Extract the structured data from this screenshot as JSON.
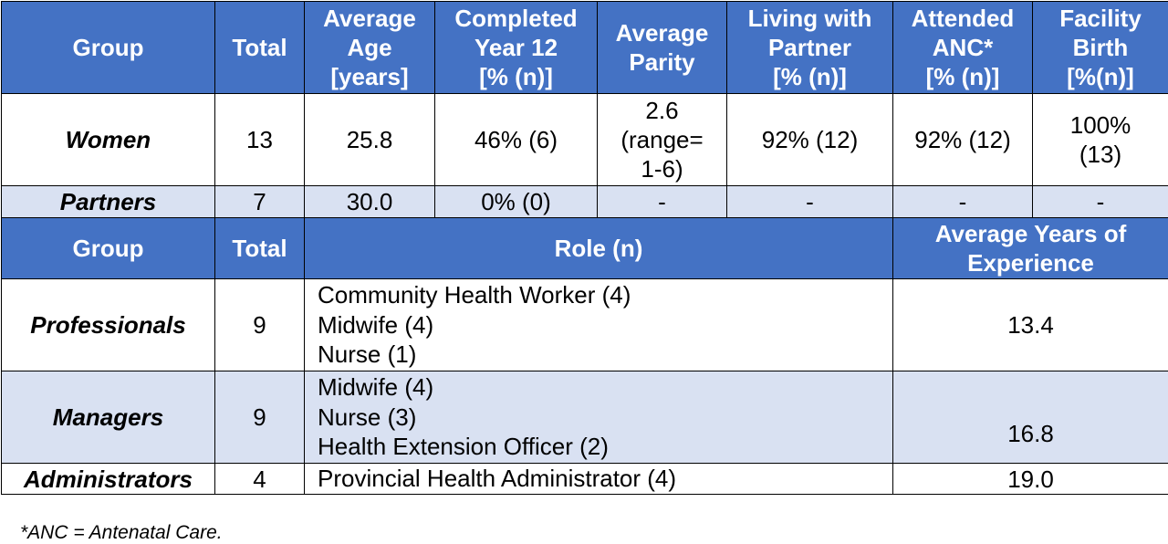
{
  "table1": {
    "headers": [
      "Group",
      "Total",
      "Average Age [years]",
      "Completed Year 12 [% (n)]",
      "Average Parity",
      "Living with Partner [% (n)]",
      "Attended ANC* [% (n)]",
      "Facility Birth [%(n)]"
    ],
    "header_lines": [
      [
        "Group"
      ],
      [
        "Total"
      ],
      [
        "Average",
        "Age",
        "[years]"
      ],
      [
        "Completed",
        "Year 12",
        "[% (n)]"
      ],
      [
        "Average",
        "Parity"
      ],
      [
        "Living with",
        "Partner",
        "[% (n)]"
      ],
      [
        "Attended",
        "ANC*",
        "[% (n)]"
      ],
      [
        "Facility",
        "Birth",
        "[%(n)]"
      ]
    ],
    "rows": [
      {
        "group": "Women",
        "total": "13",
        "age": "25.8",
        "year12": "46% (6)",
        "parity": "2.6 (range= 1-6)",
        "parity_lines": [
          "2.6",
          "(range=",
          "1-6)"
        ],
        "partner": "92% (12)",
        "anc": "92% (12)",
        "facility": "100% (13)",
        "facility_lines": [
          "100%",
          "(13)"
        ]
      },
      {
        "group": "Partners",
        "total": "7",
        "age": "30.0",
        "year12": "0% (0)",
        "parity": "-",
        "partner": "-",
        "anc": "-",
        "facility": "-"
      }
    ]
  },
  "table2": {
    "headers": {
      "group": "Group",
      "total": "Total",
      "role": "Role (n)",
      "experience_lines": [
        "Average Years of",
        "Experience"
      ]
    },
    "rows": [
      {
        "group": "Professionals",
        "total": "9",
        "roles": [
          "Community Health Worker (4)",
          "Midwife (4)",
          "Nurse (1)"
        ],
        "experience": "13.4"
      },
      {
        "group": "Managers",
        "total": "9",
        "roles": [
          "Midwife (4)",
          "Nurse (3)",
          "Health Extension Officer (2)"
        ],
        "experience": "16.8"
      },
      {
        "group": "Administrators",
        "total": "4",
        "roles": [
          "Provincial Health Administrator (4)"
        ],
        "experience": "19.0"
      }
    ]
  },
  "footnote": "*ANC = Antenatal Care.",
  "colors": {
    "header_bg": "#4472c4",
    "header_text": "#ffffff",
    "alt_row_bg": "#d9e1f2"
  }
}
